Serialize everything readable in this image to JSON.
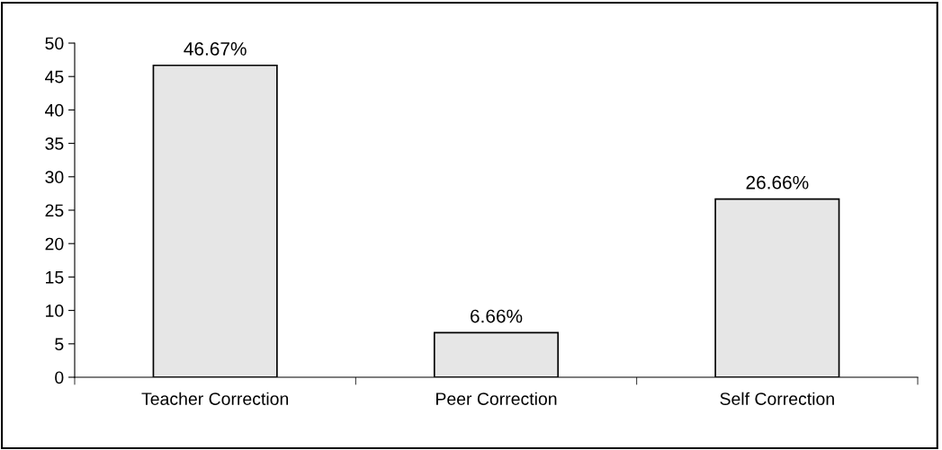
{
  "chart_data": {
    "type": "bar",
    "categories": [
      "Teacher Correction",
      "Peer Correction",
      "Self Correction"
    ],
    "values": [
      46.67,
      6.66,
      26.66
    ],
    "value_labels": [
      "46.67%",
      "6.66%",
      "26.66%"
    ],
    "color": "#e6e6e6",
    "ylim": [
      0,
      50
    ],
    "yticks": [
      0,
      5,
      10,
      15,
      20,
      25,
      30,
      35,
      40,
      45,
      50
    ],
    "grid": false,
    "legend": false
  }
}
